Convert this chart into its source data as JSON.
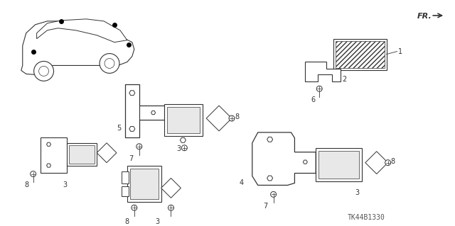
{
  "background_color": "#ffffff",
  "part_code": "TK44B1330",
  "fr_label": "FR.",
  "line_color": "#333333",
  "text_color": "#333333",
  "part_code_color": "#555555",
  "figsize": [
    6.4,
    3.19
  ],
  "dpi": 100
}
